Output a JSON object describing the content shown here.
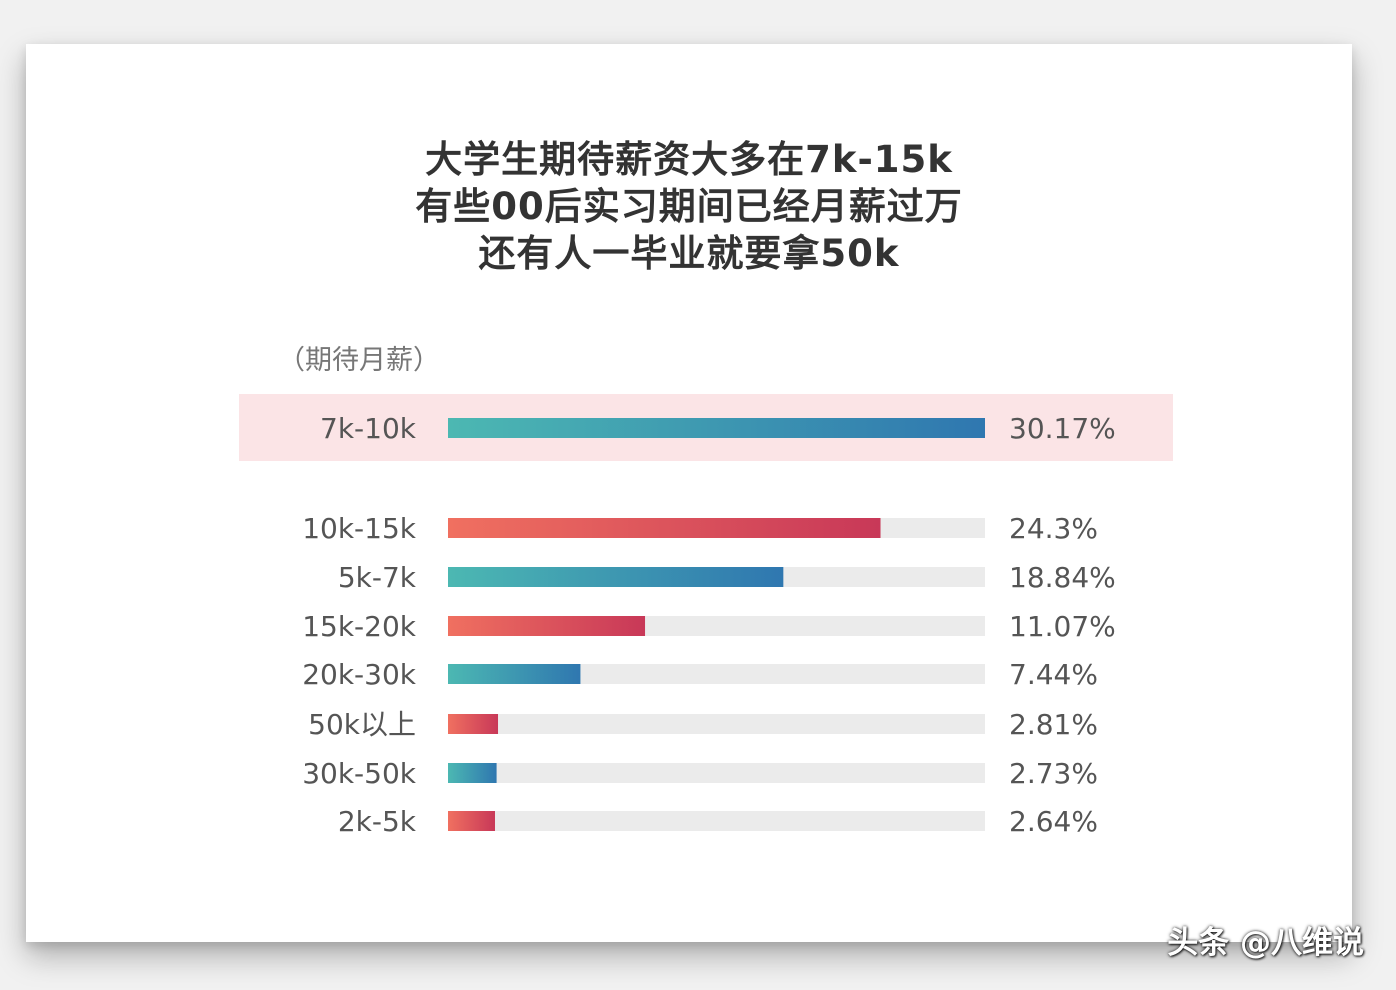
{
  "title_lines": [
    "大学生期待薪资大多在7k-15k",
    "有些00后实习期间已经月薪过万",
    "还有人一毕业就要拿50k"
  ],
  "unit_label": "（期待月薪）",
  "watermark": "头条 @八维说",
  "colors": {
    "teal_start": "#4cb8b2",
    "teal_end": "#2f77b0",
    "red_start": "#f07060",
    "red_end": "#c83858",
    "track": "#ebebeb",
    "highlight": "#fbe4e6"
  },
  "chart_data": {
    "type": "bar",
    "orientation": "horizontal",
    "ylabel": "（期待月薪）",
    "xlim": [
      0,
      30.17
    ],
    "highlighted_category": "7k-10k",
    "categories": [
      "7k-10k",
      "10k-15k",
      "5k-7k",
      "15k-20k",
      "20k-30k",
      "50k以上",
      "30k-50k",
      "2k-5k"
    ],
    "values": [
      30.17,
      24.3,
      18.84,
      11.07,
      7.44,
      2.81,
      2.73,
      2.64
    ],
    "value_labels": [
      "30.17%",
      "24.3%",
      "18.84%",
      "11.07%",
      "7.44%",
      "2.81%",
      "2.73%",
      "2.64%"
    ],
    "bar_colors": [
      "teal",
      "red",
      "teal",
      "red",
      "teal",
      "red",
      "teal",
      "red"
    ]
  }
}
